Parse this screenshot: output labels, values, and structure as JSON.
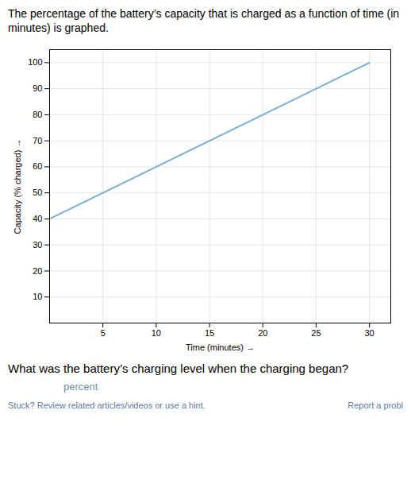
{
  "chart_data": {
    "type": "line",
    "title": "The percentage of the battery’s capacity that is charged as a function of time (in minutes) is graphed.",
    "x_label": "Time (minutes)",
    "y_label": "Capacity (% charged)",
    "x": [
      0,
      30
    ],
    "values": [
      40,
      100
    ],
    "color": "#7ab0d4",
    "xlim": [
      0,
      32
    ],
    "ylim": [
      0,
      105
    ],
    "xticks": [
      5,
      10,
      15,
      20,
      25,
      30
    ],
    "yticks": [
      10,
      20,
      30,
      40,
      50,
      60,
      70,
      80,
      90,
      100
    ],
    "grid": true,
    "annotations": [
      "What was the battery’s charging level when the charging began?",
      "percent",
      "Stuck? Review related articles/videos or use a hint.",
      "Report a probl"
    ]
  }
}
